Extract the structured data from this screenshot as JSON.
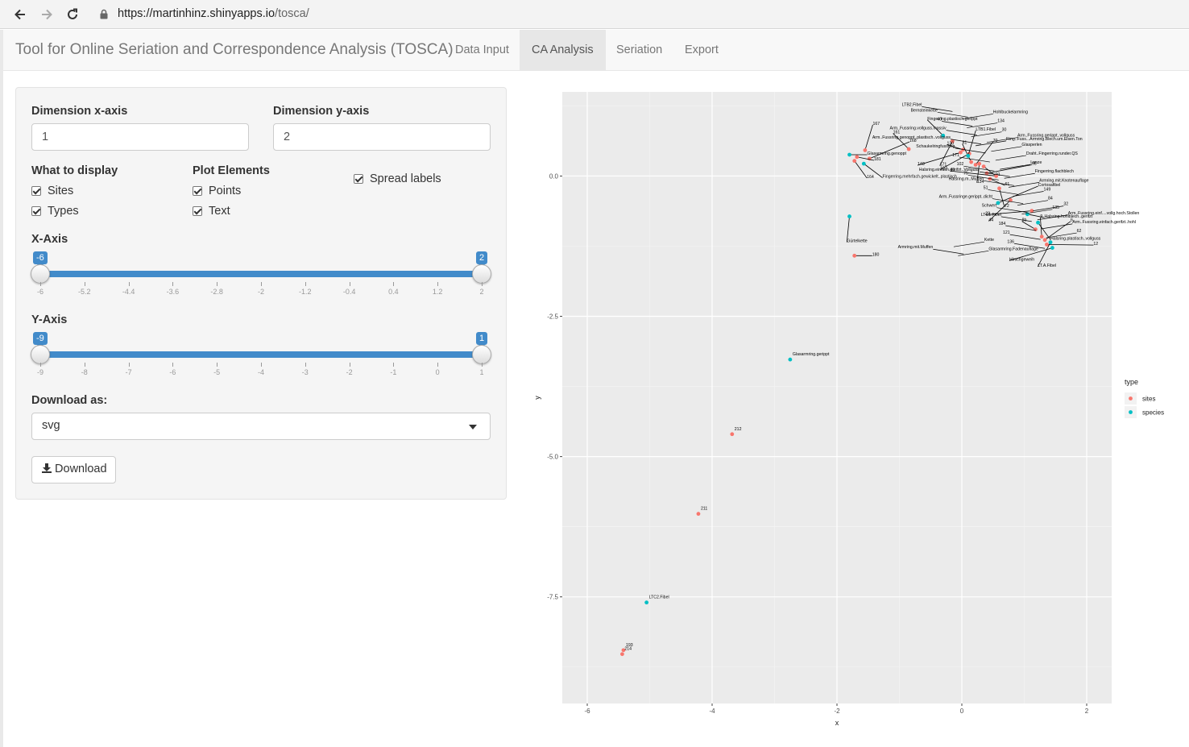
{
  "browser": {
    "url_host": "https://martinhinz.shinyapps.io",
    "url_path": "/tosca/"
  },
  "navbar": {
    "brand": "Tool for Online Seriation and Correspondence Analysis (TOSCA)",
    "tabs": [
      {
        "label": "Data Input",
        "active": false
      },
      {
        "label": "CA Analysis",
        "active": true
      },
      {
        "label": "Seriation",
        "active": false
      },
      {
        "label": "Export",
        "active": false
      }
    ]
  },
  "controls": {
    "dim_x_label": "Dimension x-axis",
    "dim_x_value": "1",
    "dim_y_label": "Dimension y-axis",
    "dim_y_value": "2",
    "display_label": "What to display",
    "display_options": [
      {
        "label": "Sites",
        "checked": true
      },
      {
        "label": "Types",
        "checked": true
      }
    ],
    "plot_elements_label": "Plot Elements",
    "plot_elements_options": [
      {
        "label": "Points",
        "checked": true
      },
      {
        "label": "Text",
        "checked": true
      }
    ],
    "spread_labels": {
      "label": "Spread labels",
      "checked": true
    },
    "x_axis_slider": {
      "label": "X-Axis",
      "from": "-6",
      "to": "2",
      "ticks": [
        "-6",
        "-5.2",
        "-4.4",
        "-3.6",
        "-2.8",
        "-2",
        "-1.2",
        "-0.4",
        "0.4",
        "1.2",
        "2"
      ]
    },
    "y_axis_slider": {
      "label": "Y-Axis",
      "from": "-9",
      "to": "1",
      "ticks": [
        "-9",
        "-8",
        "-7",
        "-6",
        "-5",
        "-4",
        "-3",
        "-2",
        "-1",
        "0",
        "1"
      ]
    },
    "download_label": "Download as:",
    "download_format": "svg",
    "download_button": "Download"
  },
  "chart_data": {
    "type": "scatter",
    "xlabel": "x",
    "ylabel": "y",
    "xlim": [
      -6.4,
      2.4
    ],
    "ylim": [
      -9.4,
      1.5
    ],
    "x_ticks": [
      -6,
      -4,
      -2,
      0,
      2
    ],
    "y_ticks": [
      0.0,
      -2.5,
      -5.0,
      -7.5
    ],
    "y_tick_labels": [
      "0.0",
      "-2.5",
      "-5.0",
      "-7.5"
    ],
    "grid": true,
    "legend": {
      "title": "type",
      "position": "right",
      "entries": [
        {
          "name": "sites",
          "color": "#F8766D"
        },
        {
          "name": "species",
          "color": "#00BFC4"
        }
      ]
    },
    "series": [
      {
        "name": "sites",
        "color": "#F8766D",
        "points": [
          {
            "x": -1.72,
            "y": -1.42,
            "label": "180"
          },
          {
            "x": -3.68,
            "y": -4.6,
            "label": "212"
          },
          {
            "x": -4.22,
            "y": -6.02,
            "label": "211"
          },
          {
            "x": -5.42,
            "y": -8.45,
            "label": "193"
          },
          {
            "x": -5.44,
            "y": -8.52,
            "label": "214"
          },
          {
            "x": -0.85,
            "y": 0.48,
            "label": "161"
          },
          {
            "x": -1.55,
            "y": 0.46,
            "label": "167"
          },
          {
            "x": -1.48,
            "y": 0.31,
            "label": "168"
          },
          {
            "x": -1.68,
            "y": 0.34,
            "label": "181"
          },
          {
            "x": -1.72,
            "y": 0.27,
            "label": "164"
          },
          {
            "x": -0.15,
            "y": 0.62,
            "label": "171"
          },
          {
            "x": -0.02,
            "y": 0.42,
            "label": "148"
          },
          {
            "x": 0.02,
            "y": 0.47,
            "label": "130"
          },
          {
            "x": 0.15,
            "y": 0.25,
            "label": "81"
          },
          {
            "x": 0.22,
            "y": 0.2,
            "label": "70"
          },
          {
            "x": 0.4,
            "y": 0.05,
            "label": "98"
          },
          {
            "x": 0.45,
            "y": -0.05,
            "label": "61"
          },
          {
            "x": 0.6,
            "y": -0.22,
            "label": "72"
          },
          {
            "x": 0.78,
            "y": -0.43,
            "label": "44"
          },
          {
            "x": 1.12,
            "y": -0.62,
            "label": "23"
          },
          {
            "x": 1.18,
            "y": -0.95,
            "label": "8b"
          },
          {
            "x": 1.28,
            "y": -1.08,
            "label": "9"
          },
          {
            "x": 1.33,
            "y": -1.14,
            "label": "6"
          },
          {
            "x": 1.36,
            "y": -1.22,
            "label": "12"
          },
          {
            "x": 0.35,
            "y": 0.17,
            "label": "91"
          },
          {
            "x": 0.28,
            "y": 0.22,
            "label": "134"
          },
          {
            "x": 0.12,
            "y": 0.4,
            "label": "102"
          },
          {
            "x": 0.55,
            "y": 0.0,
            "label": "49"
          }
        ]
      },
      {
        "name": "species",
        "color": "#00BFC4",
        "points": [
          {
            "x": -1.8,
            "y": 0.38,
            "label": "Glasarmring.genoppt"
          },
          {
            "x": -1.57,
            "y": 0.22,
            "label": "Fingerring.mehrfach.gewickelt..plastisch"
          },
          {
            "x": -1.8,
            "y": -0.72,
            "label": "Gürtelkette"
          },
          {
            "x": -2.75,
            "y": -3.27,
            "label": "Glasarmring.gerippt"
          },
          {
            "x": -5.05,
            "y": -7.6,
            "label": "LTC2.Fibel"
          },
          {
            "x": -0.3,
            "y": 0.72,
            "label": "Fingerring.plastisch.gerippt"
          },
          {
            "x": 0.1,
            "y": 0.36,
            "label": "LTB1.Fibel"
          },
          {
            "x": 0.58,
            "y": -0.48,
            "label": "Cortosafibel"
          },
          {
            "x": 1.05,
            "y": -0.68,
            "label": "Halsring.hohlblech..gerifzt"
          },
          {
            "x": 1.22,
            "y": -0.83,
            "label": "Halsring.plastisch..vollguss"
          },
          {
            "x": 1.42,
            "y": -1.18,
            "label": "LT.A.Fibel"
          },
          {
            "x": 1.45,
            "y": -1.28,
            "label": "Hirschgeweih"
          }
        ]
      }
    ],
    "annotations": [
      "LTB2.Fibel",
      "Ring..Fuss...Armring.Blech.um.Eisen.Ton",
      "75",
      "135",
      "136",
      "30",
      "102",
      "84",
      "121",
      "134",
      "171",
      "149",
      "184",
      "Hohlbuckelarmring",
      "Schaukelringfussring",
      "Armring.mit.Knotenauflage",
      "LTC1.Fibel",
      "Glasarmring.Fadenauflage",
      "Arm..Fussring.genoppt..plastisch..vollguss",
      "Fingerring.flachblech",
      "Schwert",
      "Kette",
      "Arm..Fussring.vollguss.massiv",
      "Lanze",
      "Arm..Fussringe.gerippt..dicht",
      "62",
      "40",
      "Draht..Fingerring.runder.QS",
      "51",
      "Arm..Fussring.einfach.gerifzt..hohl",
      "Bernsteinkette",
      "Glasperlen",
      "Halsring.m..Muffen",
      "Arm..Fussring.einf....vollg.hoch.Stollen",
      "Armring.mit.Muffen",
      "Arm..Fussring.gerippt..vollguss",
      "Halsring.einfach.gerifzt..Vollguss",
      "32"
    ]
  }
}
